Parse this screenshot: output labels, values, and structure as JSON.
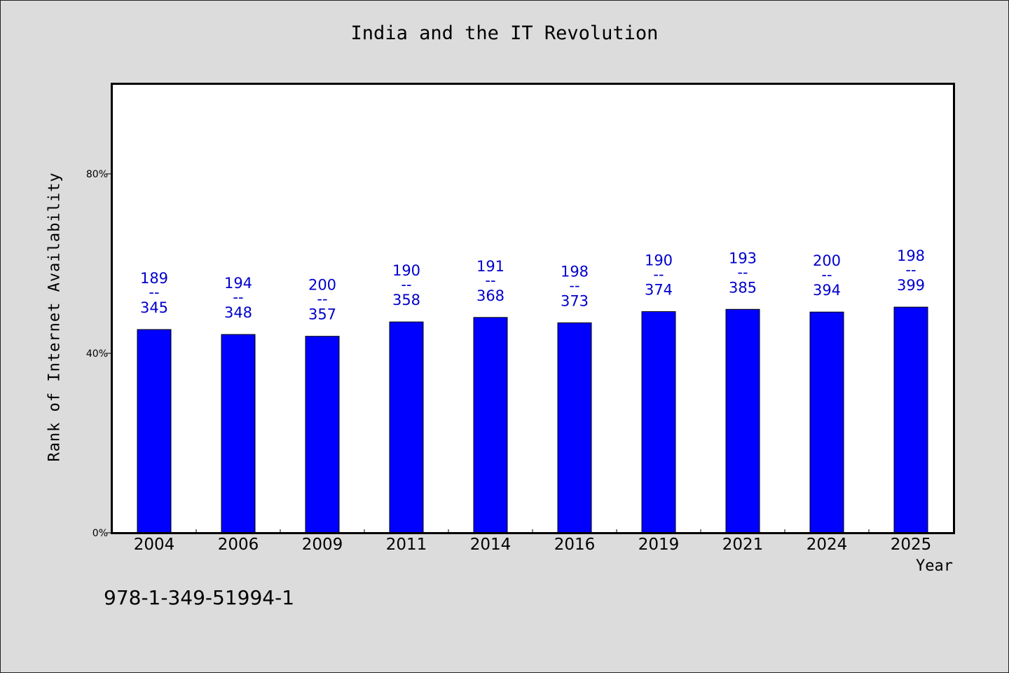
{
  "chart_data": {
    "type": "bar",
    "title": "India and the IT Revolution",
    "xlabel": "Year",
    "ylabel": "Rank of Internet Availability",
    "ylim": [
      0,
      100
    ],
    "yticks": [
      0,
      40,
      80
    ],
    "ytick_labels": [
      "0%",
      "40%",
      "80%"
    ],
    "categories": [
      "2004",
      "2006",
      "2009",
      "2011",
      "2014",
      "2016",
      "2019",
      "2021",
      "2024",
      "2025"
    ],
    "values": [
      45.3,
      44.2,
      43.8,
      47.0,
      48.0,
      46.8,
      49.3,
      49.8,
      49.2,
      50.3
    ],
    "data_labels_top": [
      "189",
      "194",
      "200",
      "190",
      "191",
      "198",
      "190",
      "193",
      "200",
      "198"
    ],
    "data_labels_bottom": [
      "345",
      "348",
      "357",
      "358",
      "368",
      "373",
      "374",
      "385",
      "394",
      "399"
    ],
    "label_separator": "--",
    "bar_color": "#0000ff",
    "label_color": "#0000cc",
    "grid": false,
    "legend": "none"
  },
  "footer": {
    "isbn": "978-1-349-51994-1"
  }
}
